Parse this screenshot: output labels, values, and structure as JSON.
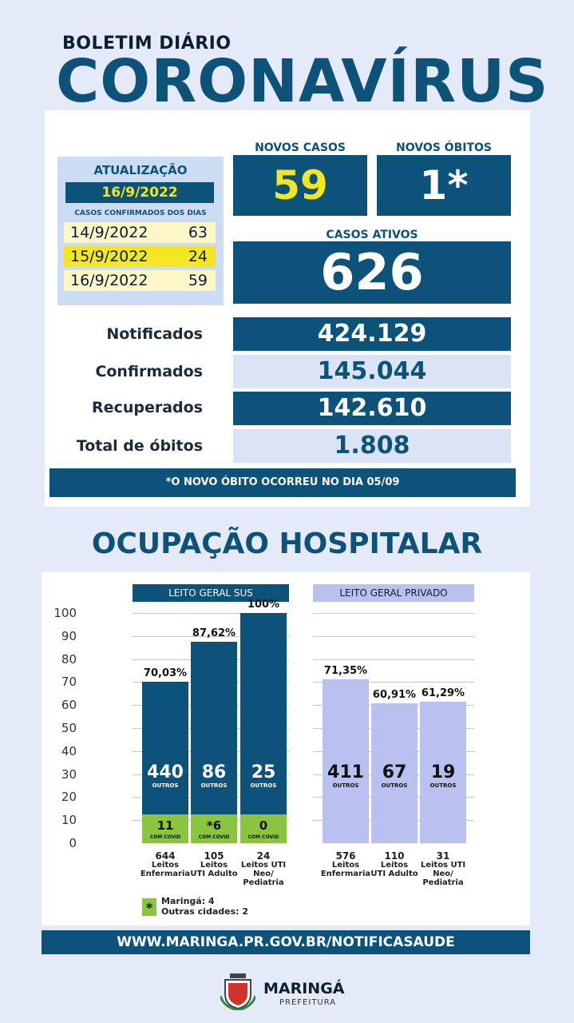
{
  "header": {
    "kicker": "BOLETIM DIÁRIO",
    "title": "CORONAVÍRUS"
  },
  "update": {
    "label": "ATUALIZAÇÃO",
    "date": "16/9/2022",
    "subtitle": "CASOS CONFIRMADOS DOS DIAS",
    "days": [
      {
        "date": "14/9/2022",
        "value": "63"
      },
      {
        "date": "15/9/2022",
        "value": "24"
      },
      {
        "date": "16/9/2022",
        "value": "59"
      }
    ]
  },
  "new_cases": {
    "label": "NOVOS CASOS",
    "value": "59"
  },
  "new_deaths": {
    "label": "NOVOS ÓBITOS",
    "value": "1*"
  },
  "active_cases": {
    "label": "CASOS ATIVOS",
    "value": "626"
  },
  "stats": [
    {
      "label": "Notificados",
      "value": "424.129"
    },
    {
      "label": "Confirmados",
      "value": "145.044"
    },
    {
      "label": "Recuperados",
      "value": "142.610"
    },
    {
      "label": "Total de óbitos",
      "value": "1.808"
    }
  ],
  "note": "*O NOVO ÓBITO OCORREU NO DIA 05/09",
  "section_title": "OCUPAÇÃO HOSPITALAR",
  "chart_data": {
    "type": "bar",
    "ylim": [
      0,
      100
    ],
    "yticks": [
      "0",
      "10",
      "20",
      "30",
      "40",
      "50",
      "60",
      "70",
      "80",
      "90",
      "100"
    ],
    "grid": true,
    "groups": [
      {
        "name": "LEITO GERAL SUS",
        "bars": [
          {
            "pct": 70.03,
            "pct_label": "70,03%",
            "outros": "440",
            "covid": "11",
            "beds": "644",
            "label": [
              "Leitos",
              "Enfermaria"
            ]
          },
          {
            "pct": 87.62,
            "pct_label": "87,62%",
            "outros": "86",
            "covid": "*6",
            "beds": "105",
            "label": [
              "Leitos",
              "UTI Adulto"
            ]
          },
          {
            "pct": 100,
            "pct_label": "100%",
            "outros": "25",
            "covid": "0",
            "beds": "24",
            "label": [
              "Leitos UTI",
              "Neo/",
              "Pediatria"
            ]
          }
        ]
      },
      {
        "name": "LEITO GERAL PRIVADO",
        "bars": [
          {
            "pct": 71.35,
            "pct_label": "71,35%",
            "outros": "411",
            "beds": "576",
            "label": [
              "Leitos",
              "Enfermaria"
            ]
          },
          {
            "pct": 60.91,
            "pct_label": "60,91%",
            "outros": "67",
            "beds": "110",
            "label": [
              "Leitos",
              "UTI Adulto"
            ]
          },
          {
            "pct": 61.29,
            "pct_label": "61,29%",
            "outros": "19",
            "beds": "31",
            "label": [
              "Leitos UTI",
              "Neo/",
              "Pediatria"
            ]
          }
        ]
      }
    ],
    "outros_label": "OUTROS",
    "covid_label": "COM COVID"
  },
  "legend": {
    "mark": "*",
    "lines": [
      "Maringá: 4",
      "Outras cidades: 2"
    ]
  },
  "footer_url": "WWW.MARINGA.PR.GOV.BR/NOTIFICASAUDE",
  "logo": {
    "name": "MARINGÁ",
    "sub": "PREFEITURA"
  },
  "colors": {
    "navy": "#0d5279",
    "light": "#dbe3f7",
    "yellow": "#f4e620",
    "covid": "#8bc43f",
    "private": "#b9c1f1"
  }
}
